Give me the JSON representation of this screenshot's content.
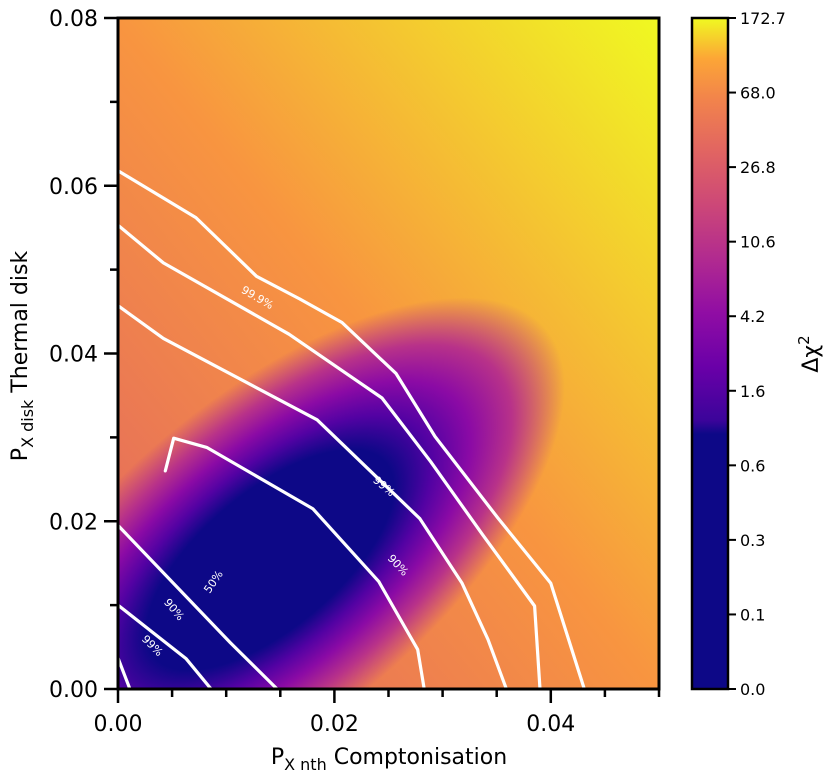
{
  "chart_data": {
    "type": "heatmap",
    "title": "",
    "xlabel": {
      "main": "P",
      "sub": "X nth",
      "rest": " Comptonisation"
    },
    "ylabel": {
      "main": "P",
      "sub": "X disk",
      "rest": " Thermal disk"
    },
    "xlim": [
      0.0,
      0.05
    ],
    "ylim": [
      0.0,
      0.08
    ],
    "x_ticks": [
      {
        "value": 0.0,
        "label": "0.00"
      },
      {
        "value": 0.02,
        "label": "0.02"
      },
      {
        "value": 0.04,
        "label": "0.04"
      }
    ],
    "y_ticks": [
      {
        "value": 0.0,
        "label": "0.00"
      },
      {
        "value": 0.02,
        "label": "0.02"
      },
      {
        "value": 0.04,
        "label": "0.04"
      },
      {
        "value": 0.06,
        "label": "0.06"
      },
      {
        "value": 0.08,
        "label": "0.08"
      }
    ],
    "colorbar": {
      "label_main": "Δχ",
      "label_sup": "2",
      "colormap": "plasma",
      "ticks": [
        "0.0",
        "0.1",
        "0.3",
        "0.6",
        "1.6",
        "4.2",
        "10.6",
        "26.8",
        "68.0",
        "172.7"
      ]
    },
    "contours": [
      {
        "label": "50%",
        "points": [
          [
            0.00437,
            0.026
          ],
          [
            0.00515,
            0.0299
          ],
          [
            0.0082,
            0.0288
          ],
          [
            0.018,
            0.0215
          ],
          [
            0.0241,
            0.0128
          ],
          [
            0.0277,
            0.0047
          ],
          [
            0.0283,
            0.0
          ]
        ]
      },
      {
        "label": "90%",
        "points": [
          [
            0.0,
            0.0195
          ],
          [
            0.0104,
            0.0055
          ],
          [
            0.0147,
            0.0
          ]
        ]
      },
      {
        "label": "90%",
        "points": [
          [
            0.0,
            0.0457
          ],
          [
            0.0042,
            0.0418
          ],
          [
            0.0184,
            0.0321
          ],
          [
            0.0279,
            0.0203
          ],
          [
            0.0318,
            0.0126
          ],
          [
            0.0342,
            0.0059
          ],
          [
            0.0359,
            0.0
          ]
        ]
      },
      {
        "label": "99%",
        "points": [
          [
            0.0,
            0.01
          ],
          [
            0.0063,
            0.0036
          ],
          [
            0.0086,
            0.0
          ]
        ]
      },
      {
        "label": "99%",
        "points": [
          [
            0.0,
            0.0553
          ],
          [
            0.0042,
            0.0508
          ],
          [
            0.0158,
            0.0423
          ],
          [
            0.0244,
            0.0347
          ],
          [
            0.0289,
            0.0271
          ],
          [
            0.0337,
            0.0184
          ],
          [
            0.0385,
            0.0099
          ],
          [
            0.039,
            0.0
          ]
        ]
      },
      {
        "label": "99.9%",
        "points": [
          [
            0.0,
            0.0618
          ],
          [
            0.0072,
            0.0562
          ],
          [
            0.0128,
            0.0492
          ],
          [
            0.0168,
            0.0465
          ],
          [
            0.0207,
            0.0437
          ],
          [
            0.0257,
            0.0376
          ],
          [
            0.0293,
            0.0301
          ],
          [
            0.0351,
            0.0204
          ],
          [
            0.04,
            0.0126
          ],
          [
            0.0431,
            0.0
          ]
        ]
      },
      {
        "label": "",
        "points": [
          [
            0.0,
            0.0037
          ],
          [
            0.0011,
            0.0
          ]
        ]
      }
    ],
    "contour_labels": [
      {
        "text": "50%",
        "x": 0.0088,
        "y": 0.0128,
        "angle": -56
      },
      {
        "text": "90%",
        "x": 0.0052,
        "y": 0.0095,
        "angle": 50
      },
      {
        "text": "99%",
        "x": 0.0032,
        "y": 0.0052,
        "angle": 45
      },
      {
        "text": "90%",
        "x": 0.0259,
        "y": 0.0148,
        "angle": 47
      },
      {
        "text": "99%",
        "x": 0.0246,
        "y": 0.0242,
        "angle": 40
      },
      {
        "text": "99.9%",
        "x": 0.0129,
        "y": 0.0467,
        "angle": 30
      }
    ],
    "grid": false
  }
}
